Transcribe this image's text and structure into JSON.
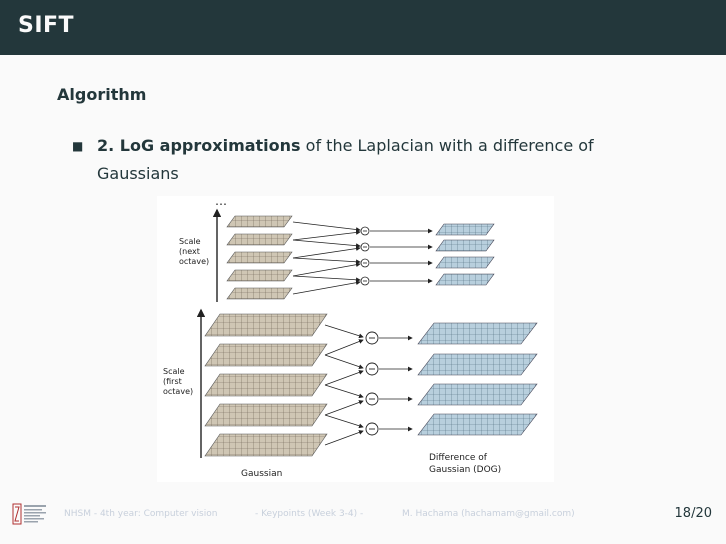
{
  "header": {
    "title": "SIFT"
  },
  "block": {
    "title": "Algorithm"
  },
  "bullet": {
    "marker": "■",
    "bold": "2. LoG approximations",
    "rest": " of the Laplacian with a difference of Gaussians"
  },
  "figure": {
    "dots": "…",
    "scale_next_label": [
      "Scale",
      "(next",
      "octave)"
    ],
    "scale_first_label": [
      "Scale",
      "(first",
      "octave)"
    ],
    "gaussian_label": "Gaussian",
    "dog_label": [
      "Difference of",
      "Gaussian (DOG)"
    ],
    "minus": "−"
  },
  "footer": {
    "course": "NHSM - 4th year: Computer vision",
    "topic": "- Keypoints (Week 3-4) -",
    "author": "M. Hachama (hachamam@gmail.com)",
    "page": "18/20"
  }
}
